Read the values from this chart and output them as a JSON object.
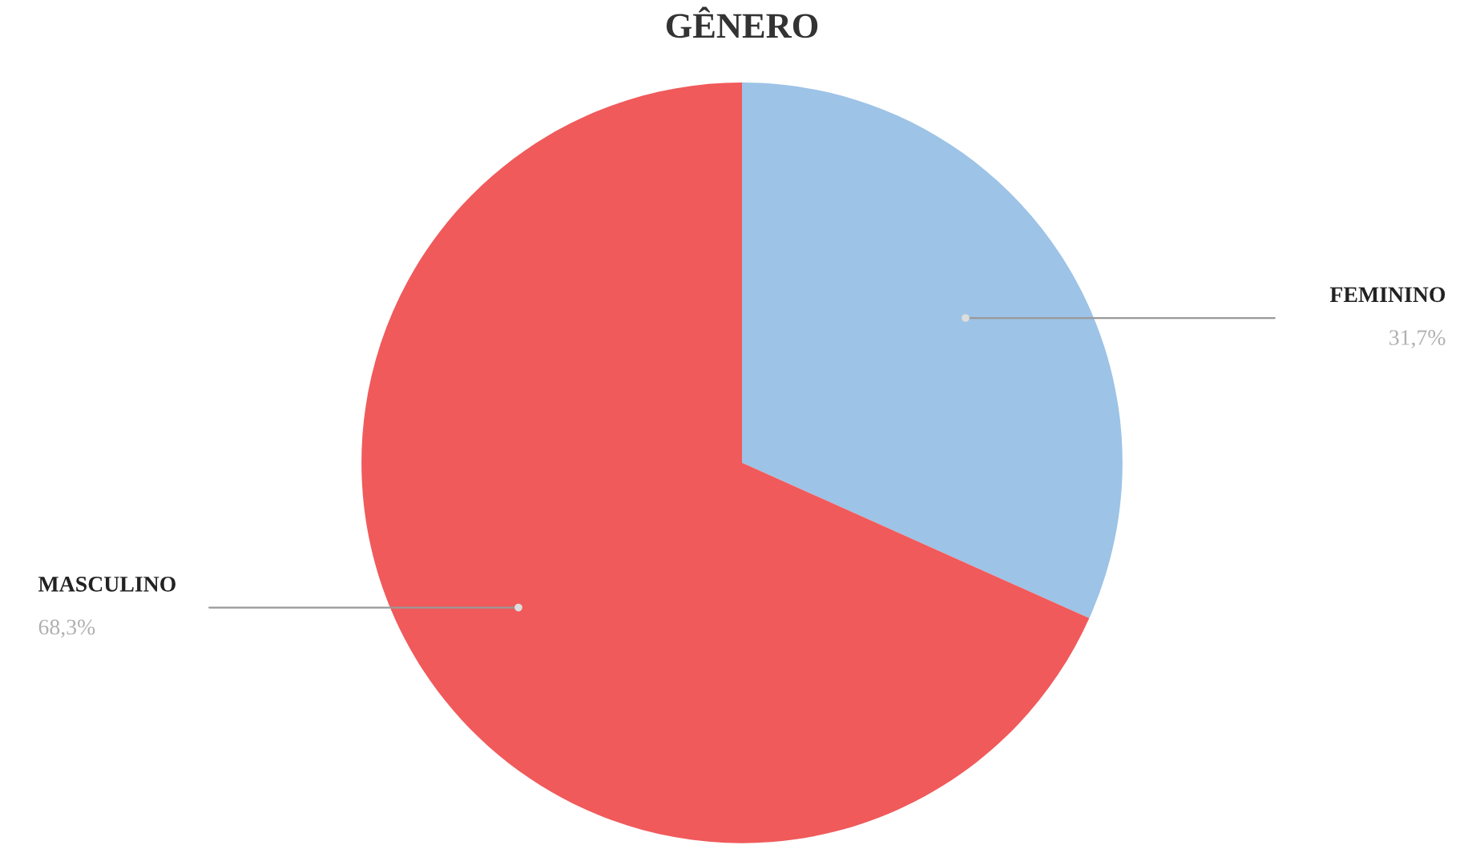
{
  "chart_data": {
    "type": "pie",
    "title": "GÊNERO",
    "categories": [
      "FEMININO",
      "MASCULINO"
    ],
    "values": [
      31.7,
      68.3
    ],
    "value_labels": [
      "31,7%",
      "68,3%"
    ],
    "colors": [
      "#9dc3e6",
      "#f05a5b"
    ]
  }
}
